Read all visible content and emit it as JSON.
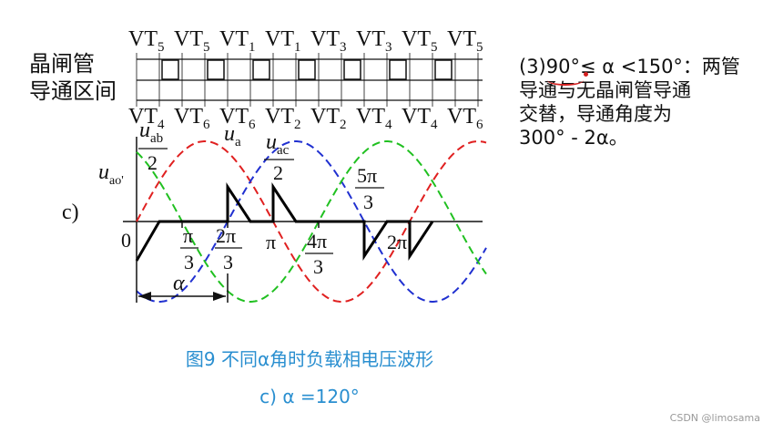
{
  "figure": {
    "row_label_line1": "晶闸管",
    "row_label_line2": "导通区间",
    "top_devices": [
      {
        "id": "upper-1",
        "base": "VT",
        "sub": "5"
      },
      {
        "id": "upper-2",
        "base": "VT",
        "sub": "5"
      },
      {
        "id": "upper-3",
        "base": "VT",
        "sub": "1"
      },
      {
        "id": "upper-4",
        "base": "VT",
        "sub": "1"
      },
      {
        "id": "upper-5",
        "base": "VT",
        "sub": "3"
      },
      {
        "id": "upper-6",
        "base": "VT",
        "sub": "3"
      },
      {
        "id": "upper-7",
        "base": "VT",
        "sub": "5"
      },
      {
        "id": "upper-8",
        "base": "VT",
        "sub": "5"
      }
    ],
    "bottom_devices": [
      {
        "id": "lower-1",
        "base": "VT",
        "sub": "4"
      },
      {
        "id": "lower-2",
        "base": "VT",
        "sub": "6"
      },
      {
        "id": "lower-3",
        "base": "VT",
        "sub": "6"
      },
      {
        "id": "lower-4",
        "base": "VT",
        "sub": "2"
      },
      {
        "id": "lower-5",
        "base": "VT",
        "sub": "2"
      },
      {
        "id": "lower-6",
        "base": "VT",
        "sub": "4"
      },
      {
        "id": "lower-7",
        "base": "VT",
        "sub": "4"
      },
      {
        "id": "lower-8",
        "base": "VT",
        "sub": "6"
      }
    ],
    "label_uab_num": "u",
    "label_uab_sub": "ab",
    "label_uab_den": "2",
    "label_ua": "u",
    "label_ua_sub": "a",
    "label_uac_num": "u",
    "label_uac_sub": "ac",
    "label_uac_den": "2",
    "label_uao": "u",
    "label_uao_sub": "ao'",
    "label_5pi_num": "5π",
    "label_5pi_den": "3",
    "label_c": "c)",
    "label_zero": "0",
    "label_pi3_num": "π",
    "label_pi3_den": "3",
    "label_2pi3_num": "2π",
    "label_2pi3_den": "3",
    "label_pi": "π",
    "label_4pi3_num": "4π",
    "label_4pi3_den": "3",
    "label_2pi": "2π",
    "label_alpha": "α",
    "colors": {
      "ua": "#e02020",
      "ub": "#2030d0",
      "uc": "#20c020",
      "output": "#000000"
    }
  },
  "note": {
    "line1": "(3)90°≤ α <150°：两管",
    "line2": "导通与无晶闸管导通",
    "line3": "交替，导通角度为",
    "line4": "300° - 2α。"
  },
  "caption": {
    "line1": "图9  不同α角时负载相电压波形",
    "line2": "c) α =120°"
  },
  "watermark": "CSDN @limosama"
}
